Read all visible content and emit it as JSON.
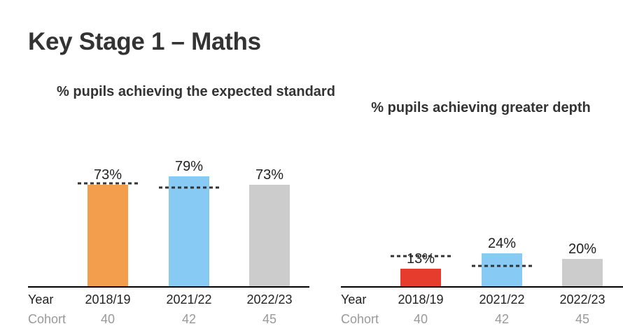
{
  "page_title": "Key Stage 1 – Maths",
  "row_labels": {
    "year": "Year",
    "cohort": "Cohort"
  },
  "colors": {
    "axis": "#000000",
    "benchmark": "#333333",
    "row_text": "#222222",
    "cohort_text": "#999999"
  },
  "chart_data": [
    {
      "type": "bar",
      "title": "% pupils achieving the expected standard",
      "categories": [
        "2018/19",
        "2021/22",
        "2022/23"
      ],
      "cohort": [
        "40",
        "42",
        "45"
      ],
      "values": [
        73,
        79,
        73
      ],
      "value_labels": [
        "73%",
        "79%",
        "73%"
      ],
      "bar_colors": [
        "#F39E4D",
        "#87CBF5",
        "#CCCCCC"
      ],
      "benchmark_lines": [
        74,
        71,
        null
      ],
      "ylim": [
        0,
        100
      ],
      "grid": false,
      "xlabel": "",
      "ylabel": ""
    },
    {
      "type": "bar",
      "title": "% pupils achieving greater depth",
      "categories": [
        "2018/19",
        "2021/22",
        "2022/23"
      ],
      "cohort": [
        "40",
        "42",
        "45"
      ],
      "values": [
        13,
        24,
        20
      ],
      "value_labels": [
        "13%",
        "24%",
        "20%"
      ],
      "bar_colors": [
        "#E53C2E",
        "#87CBF5",
        "#CCCCCC"
      ],
      "benchmark_lines": [
        22,
        15,
        null
      ],
      "ylim": [
        0,
        100
      ],
      "grid": false,
      "xlabel": "",
      "ylabel": ""
    }
  ]
}
